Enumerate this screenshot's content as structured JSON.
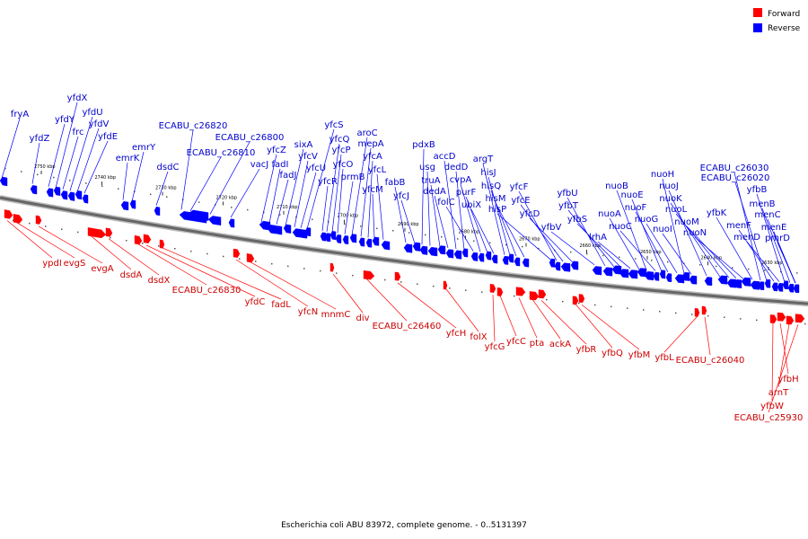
{
  "colors": {
    "forward": "#ff0000",
    "reverse": "#0000ff",
    "forward_text": "#cc0000",
    "reverse_text": "#0000cc",
    "backbone": "#666666"
  },
  "legend": [
    {
      "label": "Forward",
      "color": "#ff0000"
    },
    {
      "label": "Reverse",
      "color": "#0000ff"
    }
  ],
  "caption": "Escherichia coli ABU 83972, complete genome. - 0..5131397",
  "ticks": [
    "2750 kbp",
    "2740 kbp",
    "2730 kbp",
    "2720 kbp",
    "2710 kbp",
    "2700 kbp",
    "2690 kbp",
    "2680 kbp",
    "2670 kbp",
    "2660 kbp",
    "2650 kbp",
    "2640 kbp",
    "2630 kbp"
  ],
  "reverse_labels": [
    "fryA",
    "yfdZ",
    "yfdY",
    "yfdX",
    "frc",
    "yfdU",
    "yfdV",
    "yfdE",
    "emrK",
    "emrY",
    "dsdC",
    "ECABU_c26820",
    "ECABU_c26810",
    "ECABU_c26800",
    "vacJ",
    "yfcZ",
    "fadI",
    "fadJ",
    "sixA",
    "yfcV",
    "yfcU",
    "yfcS",
    "yfcR",
    "yfcQ",
    "yfcP",
    "yfcO",
    "prmB",
    "aroC",
    "mepA",
    "yfcA",
    "yfcM",
    "yfcL",
    "fabB",
    "yfcJ",
    "pdxB",
    "usg",
    "truA",
    "dedA",
    "accD",
    "dedD",
    "folC",
    "cvpA",
    "purF",
    "ubiX",
    "argT",
    "hisJ",
    "hisQ",
    "hisM",
    "hisP",
    "yfcF",
    "yfcE",
    "yfcD",
    "yfbV",
    "yfbU",
    "yfbT",
    "yfbS",
    "lrhA",
    "nuoA",
    "nuoB",
    "nuoC",
    "nuoE",
    "nuoF",
    "nuoG",
    "nuoH",
    "nuoI",
    "nuoJ",
    "nuoK",
    "nuoL",
    "nuoM",
    "nuoN",
    "yfbK",
    "ECABU_c26030",
    "ECABU_c26020",
    "menF",
    "menD",
    "yfbB",
    "menB",
    "menC",
    "menE",
    "pmrD"
  ],
  "forward_labels": [
    "ypdI",
    "evgS",
    "evgA",
    "dsdA",
    "dsdX",
    "ECABU_c26830",
    "yfdC",
    "fadL",
    "yfcN",
    "mnmC",
    "div",
    "ECABU_c26460",
    "yfcH",
    "folX",
    "yfcG",
    "yfcC",
    "pta",
    "ackA",
    "yfbR",
    "yfbQ",
    "yfbM",
    "yfbL",
    "ECABU_c26040",
    "yfbW",
    "yfbH",
    "arnT",
    "ECABU_c25930"
  ]
}
